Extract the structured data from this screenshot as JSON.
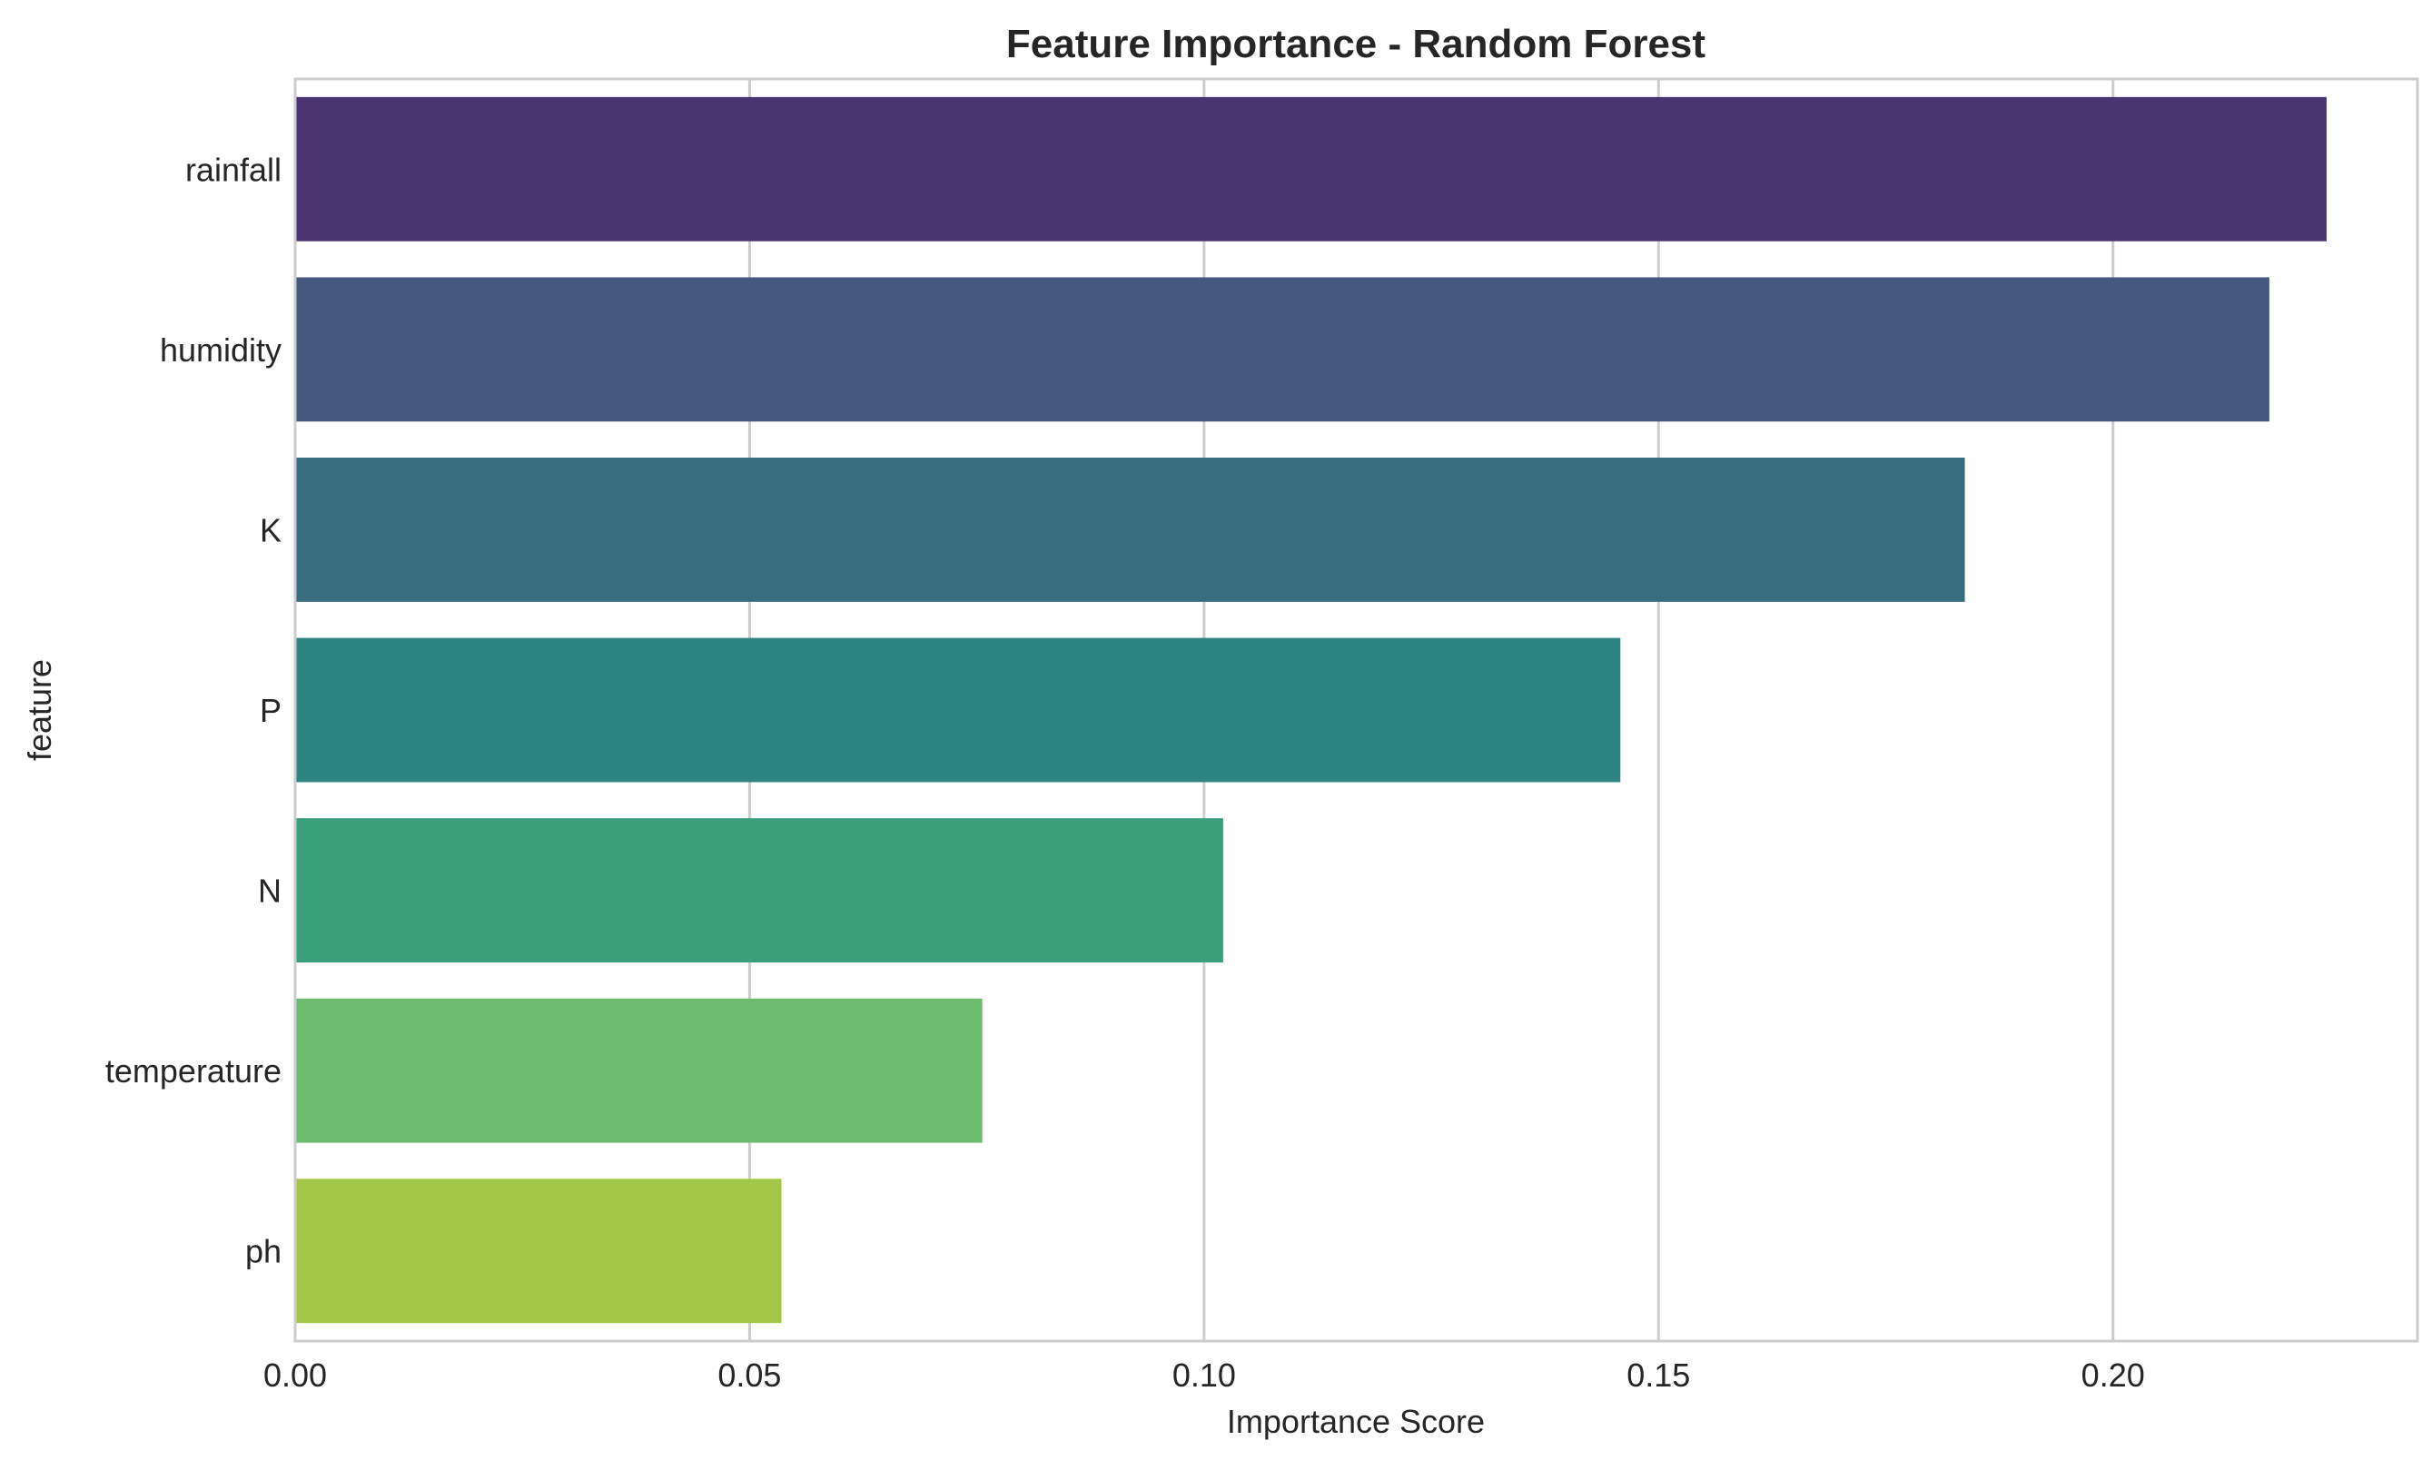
{
  "chart_data": {
    "type": "bar",
    "orientation": "horizontal",
    "title": "Feature Importance - Random Forest",
    "xlabel": "Importance Score",
    "ylabel": "feature",
    "categories": [
      "rainfall",
      "humidity",
      "K",
      "P",
      "N",
      "temperature",
      "ph"
    ],
    "values": [
      0.2235,
      0.2172,
      0.1837,
      0.1458,
      0.1021,
      0.0756,
      0.0535
    ],
    "xlim": [
      0.0,
      0.2335
    ],
    "xticks": [
      0.0,
      0.05,
      0.1,
      0.15,
      0.2
    ],
    "xtick_labels": [
      "0.00",
      "0.05",
      "0.10",
      "0.15",
      "0.20"
    ],
    "grid": true,
    "legend": "none",
    "colors": [
      "#4a3472",
      "#45587f",
      "#386d80",
      "#2d8480",
      "#3aa07c",
      "#6bbd6d",
      "#a3c746"
    ]
  }
}
